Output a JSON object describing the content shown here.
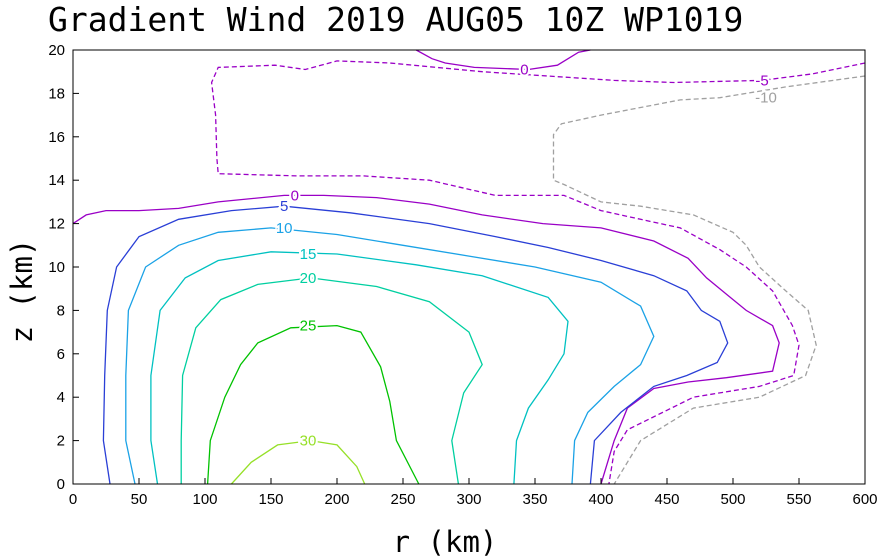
{
  "chart_data": {
    "type": "contour",
    "title": "Gradient Wind 2019 AUG05 10Z  WP1019",
    "xlabel": "r (km)",
    "ylabel": "z (km)",
    "xlim": [
      0,
      600
    ],
    "ylim": [
      0,
      20
    ],
    "xticks": [
      0,
      50,
      100,
      150,
      200,
      250,
      300,
      350,
      400,
      450,
      500,
      550,
      600
    ],
    "yticks": [
      0,
      2,
      4,
      6,
      8,
      10,
      12,
      14,
      16,
      18,
      20
    ],
    "grid": false,
    "legend": "none",
    "contours": [
      {
        "level": -10,
        "label": "-10",
        "color": "#a0a0a0",
        "dashed": true,
        "label_at": [
          183,
          17.9
        ],
        "paths": [
          [
            [
              600,
              18.8
            ],
            [
              540,
              18.3
            ],
            [
              490,
              17.8
            ],
            [
              460,
              17.7
            ],
            [
              400,
              17.0
            ],
            [
              370,
              16.6
            ],
            [
              364,
              16.1
            ],
            [
              364,
              14.0
            ],
            [
              372,
              13.8
            ],
            [
              400,
              13.0
            ],
            [
              430,
              12.8
            ],
            [
              470,
              12.4
            ],
            [
              500,
              11.6
            ],
            [
              510,
              11.0
            ],
            [
              520,
              10.0
            ],
            [
              540,
              8.9
            ],
            [
              557,
              8.0
            ],
            [
              563,
              6.4
            ],
            [
              555,
              5.0
            ],
            [
              520,
              4.0
            ],
            [
              470,
              3.5
            ],
            [
              430,
              2.0
            ],
            [
              410,
              0
            ]
          ]
        ]
      },
      {
        "level": -5,
        "label": "-5",
        "color": "#9a00c6",
        "dashed": true,
        "label_at": [
          171,
          18.9
        ],
        "paths": [
          [
            [
              600,
              19.4
            ],
            [
              560,
              18.9
            ],
            [
              522,
              18.6
            ],
            [
              455,
              18.5
            ],
            [
              410,
              18.6
            ],
            [
              310,
              19.0
            ],
            [
              240,
              19.4
            ],
            [
              200,
              19.5
            ],
            [
              176,
              19.1
            ],
            [
              153,
              19.3
            ],
            [
              110,
              19.2
            ],
            [
              105,
              18.5
            ],
            [
              108,
              17.0
            ],
            [
              109,
              15.0
            ],
            [
              110,
              14.3
            ],
            [
              170,
              14.2
            ],
            [
              220,
              14.2
            ],
            [
              270,
              14.0
            ],
            [
              320,
              13.3
            ],
            [
              372,
              13.3
            ],
            [
              400,
              12.6
            ],
            [
              430,
              12.2
            ],
            [
              460,
              11.8
            ],
            [
              490,
              10.8
            ],
            [
              510,
              10.0
            ],
            [
              530,
              8.9
            ],
            [
              545,
              7.3
            ],
            [
              550,
              6.4
            ],
            [
              546,
              5.0
            ],
            [
              520,
              4.5
            ],
            [
              470,
              4.0
            ],
            [
              420,
              2.5
            ],
            [
              410,
              1.5
            ],
            [
              406,
              0
            ]
          ]
        ]
      },
      {
        "level": 0,
        "label": "0",
        "color": "#9a00c6",
        "dashed": false,
        "label_at": [
          0,
          0
        ],
        "paths": [
          [
            [
              0,
              12.0
            ],
            [
              10,
              12.4
            ],
            [
              25,
              12.6
            ],
            [
              50,
              12.6
            ],
            [
              80,
              12.7
            ],
            [
              110,
              13.0
            ],
            [
              160,
              13.3
            ],
            [
              190,
              13.3
            ],
            [
              230,
              13.2
            ],
            [
              270,
              12.9
            ],
            [
              310,
              12.4
            ],
            [
              356,
              12.0
            ],
            [
              400,
              11.8
            ],
            [
              440,
              11.2
            ],
            [
              466,
              10.4
            ],
            [
              480,
              9.5
            ],
            [
              496,
              8.7
            ],
            [
              510,
              8.0
            ],
            [
              530,
              7.3
            ],
            [
              535,
              6.5
            ],
            [
              530,
              5.2
            ],
            [
              495,
              4.9
            ],
            [
              466,
              4.7
            ],
            [
              440,
              4.4
            ],
            [
              420,
              3.5
            ],
            [
              410,
              2.0
            ],
            [
              400,
              0
            ]
          ],
          [
            [
              260,
              20.0
            ],
            [
              272,
              19.6
            ],
            [
              282,
              19.4
            ],
            [
              304,
              19.2
            ],
            [
              345,
              19.1
            ],
            [
              367,
              19.3
            ],
            [
              383,
              19.9
            ],
            [
              392,
              20.0
            ]
          ]
        ]
      },
      {
        "level": 5,
        "label": "5",
        "color": "#2a3fd6",
        "dashed": false,
        "label_at": [
          0,
          0
        ],
        "paths": [
          [
            [
              28,
              0
            ],
            [
              23,
              2.0
            ],
            [
              24,
              5.0
            ],
            [
              26,
              8.0
            ],
            [
              33,
              10.0
            ],
            [
              50,
              11.4
            ],
            [
              80,
              12.2
            ],
            [
              120,
              12.6
            ],
            [
              160,
              12.8
            ],
            [
              210,
              12.5
            ],
            [
              270,
              12.0
            ],
            [
              320,
              11.4
            ],
            [
              360,
              10.9
            ],
            [
              400,
              10.3
            ],
            [
              440,
              9.6
            ],
            [
              465,
              8.9
            ],
            [
              476,
              8.0
            ],
            [
              490,
              7.5
            ],
            [
              496,
              6.5
            ],
            [
              488,
              5.6
            ],
            [
              465,
              5.0
            ],
            [
              440,
              4.5
            ],
            [
              415,
              3.3
            ],
            [
              395,
              2.0
            ],
            [
              392,
              0
            ]
          ]
        ]
      },
      {
        "level": 10,
        "label": "10",
        "color": "#1ba2e6",
        "dashed": false,
        "label_at": [
          0,
          0
        ],
        "paths": [
          [
            [
              47,
              0
            ],
            [
              40,
              2.0
            ],
            [
              40,
              5.0
            ],
            [
              42,
              8.0
            ],
            [
              55,
              10.0
            ],
            [
              80,
              11.0
            ],
            [
              110,
              11.6
            ],
            [
              150,
              11.8
            ],
            [
              200,
              11.5
            ],
            [
              250,
              11.0
            ],
            [
              300,
              10.5
            ],
            [
              350,
              10.0
            ],
            [
              400,
              9.3
            ],
            [
              430,
              8.2
            ],
            [
              440,
              6.8
            ],
            [
              430,
              5.5
            ],
            [
              410,
              4.5
            ],
            [
              390,
              3.3
            ],
            [
              380,
              2.0
            ],
            [
              378,
              0
            ]
          ]
        ]
      },
      {
        "level": 15,
        "label": "15",
        "color": "#00c1c1",
        "dashed": false,
        "label_at": [
          0,
          0
        ],
        "paths": [
          [
            [
              64,
              0
            ],
            [
              59,
              2.0
            ],
            [
              59,
              5.0
            ],
            [
              66,
              8.0
            ],
            [
              85,
              9.5
            ],
            [
              110,
              10.3
            ],
            [
              150,
              10.7
            ],
            [
              200,
              10.6
            ],
            [
              260,
              10.1
            ],
            [
              310,
              9.6
            ],
            [
              360,
              8.6
            ],
            [
              375,
              7.5
            ],
            [
              372,
              6.0
            ],
            [
              360,
              4.8
            ],
            [
              345,
              3.5
            ],
            [
              336,
              2.0
            ],
            [
              334,
              0
            ]
          ]
        ]
      },
      {
        "level": 20,
        "label": "20",
        "color": "#00cfa0",
        "dashed": false,
        "label_at": [
          0,
          0
        ],
        "paths": [
          [
            [
              82,
              0
            ],
            [
              82,
              2.0
            ],
            [
              83,
              5.0
            ],
            [
              93,
              7.2
            ],
            [
              112,
              8.5
            ],
            [
              140,
              9.2
            ],
            [
              180,
              9.5
            ],
            [
              230,
              9.1
            ],
            [
              270,
              8.4
            ],
            [
              300,
              7.0
            ],
            [
              310,
              5.5
            ],
            [
              296,
              4.2
            ],
            [
              287,
              2.0
            ],
            [
              292,
              0
            ]
          ]
        ]
      },
      {
        "level": 25,
        "label": "25",
        "color": "#00c200",
        "dashed": false,
        "label_at": [
          0,
          0
        ],
        "paths": [
          [
            [
              102,
              0
            ],
            [
              104,
              2.0
            ],
            [
              115,
              4.0
            ],
            [
              127,
              5.5
            ],
            [
              140,
              6.5
            ],
            [
              165,
              7.2
            ],
            [
              200,
              7.3
            ],
            [
              218,
              7.0
            ],
            [
              233,
              5.4
            ],
            [
              240,
              3.8
            ],
            [
              245,
              2.0
            ],
            [
              262,
              0
            ]
          ]
        ]
      },
      {
        "level": 30,
        "label": "30",
        "color": "#96e028",
        "dashed": false,
        "label_at": [
          0,
          0
        ],
        "paths": [
          [
            [
              120,
              0
            ],
            [
              135,
              1.0
            ],
            [
              155,
              1.8
            ],
            [
              180,
              2.0
            ],
            [
              200,
              1.8
            ],
            [
              215,
              0.8
            ],
            [
              221,
              0
            ]
          ]
        ]
      }
    ]
  }
}
